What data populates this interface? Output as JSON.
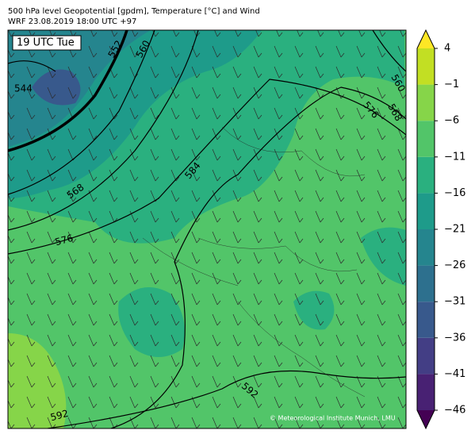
{
  "header": {
    "title": "500 hPa level Geopotential [gpdm], Temperature [°C] and Wind",
    "subtitle": "WRF 23.08.2019 18:00 UTC +97"
  },
  "map": {
    "time_label": "19 UTC Tue",
    "contour_labels": [
      "544",
      "552",
      "560",
      "568",
      "576",
      "584",
      "592",
      "592",
      "560",
      "568",
      "576"
    ],
    "credit": "© Meteorological Institute Munich, LMU"
  },
  "colorbar": {
    "ticks": [
      4,
      {
        "value": -1,
        "label": "−1"
      },
      {
        "value": -6,
        "label": "−6"
      },
      {
        "value": -11,
        "label": "−11"
      },
      {
        "value": -16,
        "label": "−16"
      },
      {
        "value": -21,
        "label": "−21"
      },
      {
        "value": -26,
        "label": "−26"
      },
      {
        "value": -31,
        "label": "−31"
      },
      {
        "value": -36,
        "label": "−36"
      },
      {
        "value": -41,
        "label": "−41"
      },
      {
        "value": -46,
        "label": "−46"
      }
    ],
    "colors": [
      "#440154",
      "#482173",
      "#433e85",
      "#38598c",
      "#2d708e",
      "#25858e",
      "#1e9b8a",
      "#2ab07f",
      "#52c569",
      "#86d549",
      "#c2df23",
      "#fde725"
    ]
  }
}
